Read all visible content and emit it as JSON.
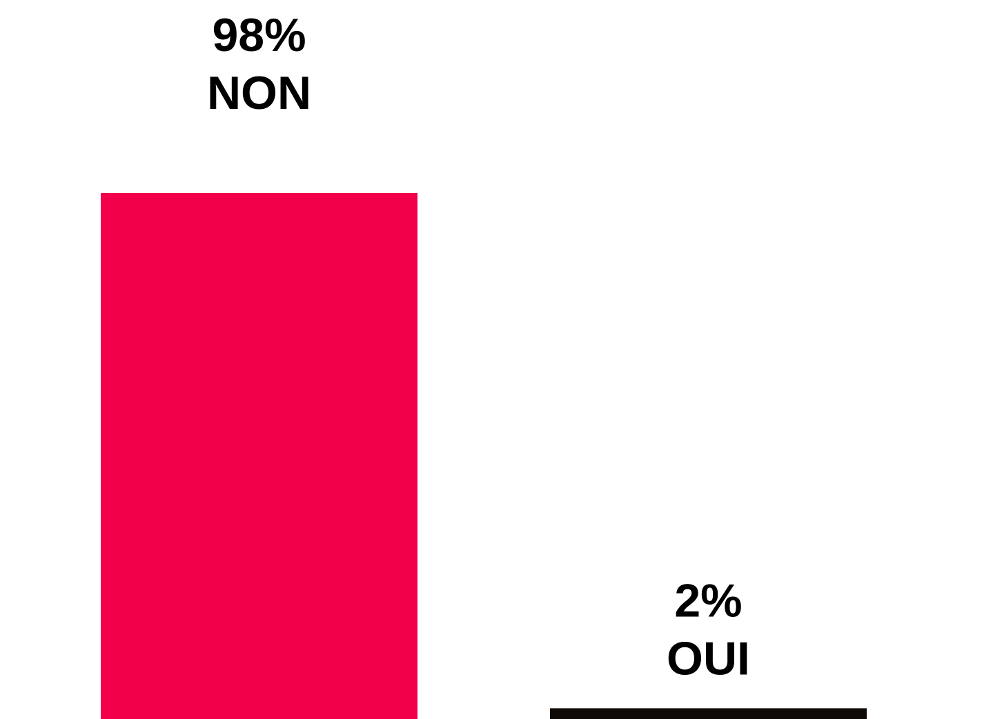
{
  "chart_data": {
    "type": "bar",
    "categories": [
      "NON",
      "OUI"
    ],
    "values": [
      98,
      2
    ],
    "value_labels": [
      "98%",
      "2%"
    ],
    "colors": [
      "#f2004a",
      "#0f0a05"
    ]
  }
}
